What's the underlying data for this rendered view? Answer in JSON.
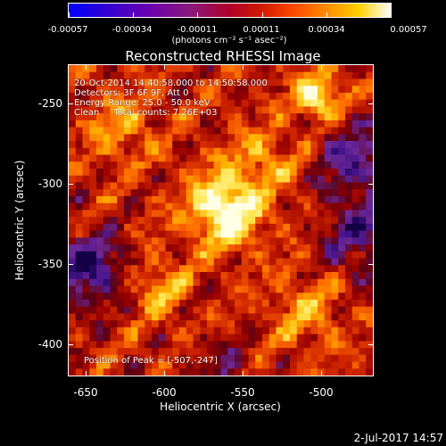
{
  "colorbar": {
    "tick_labels": [
      "-0.00057",
      "-0.00034",
      "-0.00011",
      "0.00011",
      "0.00034",
      "0.00057"
    ],
    "units": "(photons cm⁻² s⁻¹ asec⁻²)",
    "colors": [
      "#0000ff",
      "#6b00b0",
      "#b0002a",
      "#ff4a00",
      "#ffd000",
      "#ffffff"
    ]
  },
  "chart_data": {
    "type": "heatmap",
    "title": "Reconstructed RHESSI Image",
    "xlabel": "Heliocentric X (arcsec)",
    "ylabel": "Heliocentric Y (arcsec)",
    "xlim": [
      -665,
      -470
    ],
    "ylim": [
      -420,
      -225
    ],
    "x_ticks": [
      "-650",
      "-600",
      "-550",
      "-500"
    ],
    "x_tick_values": [
      -650,
      -600,
      -550,
      -500
    ],
    "y_ticks": [
      "-250",
      "-300",
      "-350",
      "-400"
    ],
    "y_tick_values": [
      -250,
      -300,
      -350,
      -400
    ],
    "colorbar_range": [
      -0.00057,
      0.00057
    ],
    "peak_position": [
      -507,
      -247
    ],
    "annotations": {
      "time_range": "20-Oct-2014 14:40:58.000 to 14:50:58.000",
      "detectors": "Detectors: 3F 6F 9F, Att 0",
      "energy_range": "Energy Range: 25.0 - 50.0 keV",
      "clean_counts": "Clean     Total counts: 7.26E+03",
      "peak_label": "Position of Peak = [-507,-247]"
    }
  },
  "footer": {
    "date": "2-Jul-2017 14:57"
  }
}
